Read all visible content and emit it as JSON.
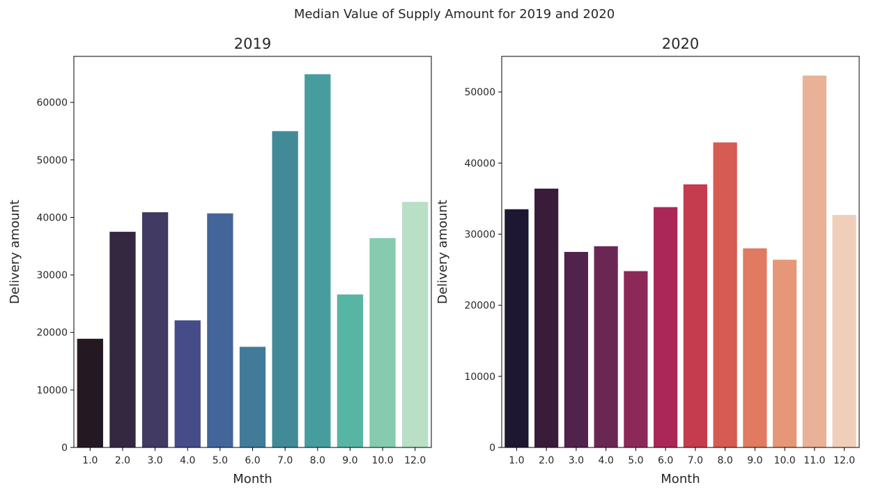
{
  "figure": {
    "title": "Median Value of Supply Amount for 2019 and 2020"
  },
  "chart_data": [
    {
      "type": "bar",
      "title": "2019",
      "xlabel": "Month",
      "ylabel": "Delivery amount",
      "categories": [
        "1.0",
        "2.0",
        "3.0",
        "4.0",
        "5.0",
        "6.0",
        "7.0",
        "8.0",
        "9.0",
        "10.0",
        "12.0"
      ],
      "values": [
        18900,
        37500,
        40900,
        22100,
        40700,
        17500,
        55000,
        64900,
        26600,
        36400,
        42700
      ],
      "ylim": [
        0,
        68000
      ],
      "yticks": [
        0,
        10000,
        20000,
        30000,
        40000,
        50000,
        60000
      ],
      "colors": [
        "#241923",
        "#342841",
        "#413a62",
        "#464c87",
        "#43659a",
        "#417b99",
        "#428a97",
        "#479d9e",
        "#57b5a3",
        "#86cbaf",
        "#b9dfc6"
      ],
      "grid": false,
      "legend": "none"
    },
    {
      "type": "bar",
      "title": "2020",
      "xlabel": "Month",
      "ylabel": "Delivery amount",
      "categories": [
        "1.0",
        "2.0",
        "3.0",
        "4.0",
        "5.0",
        "6.0",
        "7.0",
        "8.0",
        "9.0",
        "10.0",
        "11.0",
        "12.0"
      ],
      "values": [
        33500,
        36400,
        27500,
        28300,
        24800,
        33800,
        37000,
        42900,
        28000,
        26400,
        52300,
        32700
      ],
      "ylim": [
        0,
        55000
      ],
      "yticks": [
        0,
        10000,
        20000,
        30000,
        40000,
        50000
      ],
      "colors": [
        "#1e1731",
        "#381c3a",
        "#51224c",
        "#6b2753",
        "#8c2958",
        "#aa2758",
        "#c43c4e",
        "#d65b53",
        "#e07a60",
        "#e59778",
        "#e9b196",
        "#f0cfba"
      ],
      "grid": false,
      "legend": "none"
    }
  ]
}
